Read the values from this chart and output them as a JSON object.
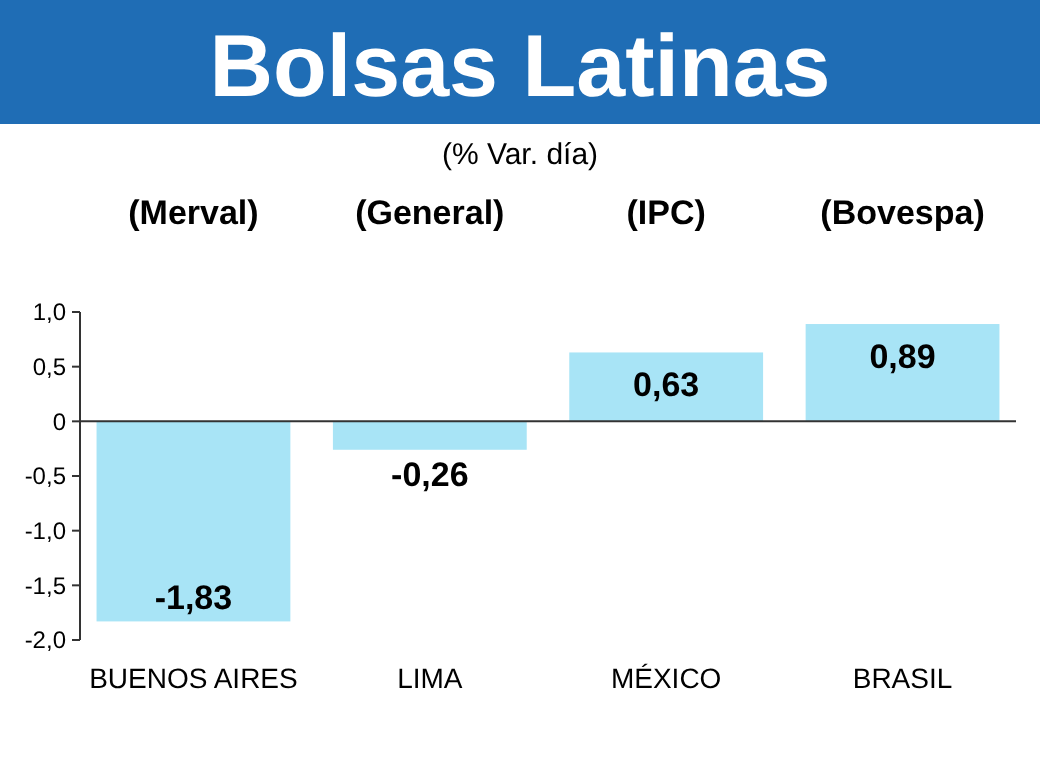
{
  "chart_data": {
    "type": "bar",
    "title": "Bolsas Latinas",
    "subtitle": "(% Var. día)",
    "categories": [
      "BUENOS AIRES",
      "LIMA",
      "MÉXICO",
      "BRASIL"
    ],
    "values": [
      -1.83,
      -0.26,
      0.63,
      0.89
    ],
    "value_labels": [
      "-1,83",
      "-0,26",
      "0,63",
      "0,89"
    ],
    "color": "#a8e4f6",
    "ylim": [
      -2,
      1
    ],
    "yticks": [
      {
        "value": -2,
        "label": "-2,0"
      },
      {
        "value": -1.5,
        "label": "-1,5"
      },
      {
        "value": -1,
        "label": "-1,0"
      },
      {
        "value": -0.5,
        "label": "-0,5"
      },
      0,
      {
        "value": 0.5,
        "label": "0,5"
      },
      {
        "value": 1,
        "label": "1,0"
      }
    ],
    "annotations": [
      "(Merval)",
      "(General)",
      "(IPC)",
      "(Bovespa)"
    ]
  }
}
